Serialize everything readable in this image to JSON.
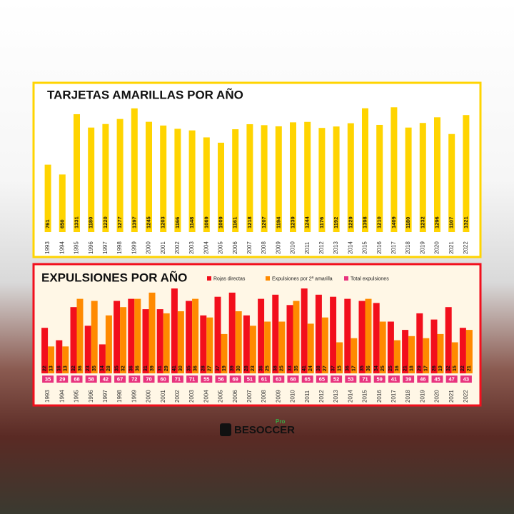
{
  "chart_data": [
    {
      "type": "bar",
      "title": "TARJETAS AMARILLAS POR AÑO",
      "categories": [
        "1993",
        "1994",
        "1995",
        "1996",
        "1997",
        "1998",
        "1999",
        "2000",
        "2001",
        "2002",
        "2003",
        "2004",
        "2005",
        "2006",
        "2007",
        "2008",
        "2009",
        "2010",
        "2011",
        "2012",
        "2013",
        "2014",
        "2015",
        "2016",
        "2017",
        "2018",
        "2019",
        "2020",
        "2021",
        "2022"
      ],
      "values": [
        761,
        650,
        1331,
        1180,
        1220,
        1277,
        1397,
        1245,
        1203,
        1166,
        1148,
        1069,
        1009,
        1161,
        1218,
        1207,
        1194,
        1239,
        1244,
        1176,
        1192,
        1229,
        1398,
        1210,
        1409,
        1180,
        1232,
        1296,
        1107,
        1321
      ],
      "color": "#ffd400"
    },
    {
      "type": "grouped-bar",
      "title": "EXPULSIONES POR AÑO",
      "categories": [
        "1993",
        "1994",
        "1995",
        "1996",
        "1997",
        "1998",
        "1999",
        "2000",
        "2001",
        "2002",
        "2003",
        "2004",
        "2005",
        "2006",
        "2007",
        "2008",
        "2009",
        "2010",
        "2011",
        "2012",
        "2013",
        "2014",
        "2015",
        "2016",
        "2017",
        "2018",
        "2019",
        "2020",
        "2021",
        "2022"
      ],
      "series": [
        {
          "name": "Rojas directas",
          "color": "#f20f1c",
          "values": [
            22,
            16,
            32,
            23,
            14,
            35,
            36,
            31,
            31,
            41,
            35,
            28,
            37,
            39,
            28,
            36,
            38,
            33,
            41,
            38,
            37,
            36,
            35,
            34,
            25,
            21,
            29,
            26,
            32,
            22
          ]
        },
        {
          "name": "Expulsiones por 2ª amarilla",
          "color": "#ff8a00",
          "values": [
            13,
            13,
            36,
            35,
            28,
            32,
            36,
            39,
            29,
            30,
            36,
            27,
            19,
            30,
            23,
            25,
            25,
            35,
            24,
            27,
            15,
            17,
            36,
            25,
            16,
            18,
            17,
            19,
            15,
            21
          ]
        },
        {
          "name": "Total expulsiones",
          "color": "#e8337e",
          "values": [
            35,
            29,
            68,
            58,
            42,
            67,
            72,
            70,
            60,
            71,
            71,
            55,
            56,
            69,
            51,
            61,
            63,
            68,
            65,
            65,
            52,
            53,
            71,
            59,
            41,
            39,
            46,
            45,
            47,
            43
          ]
        }
      ]
    }
  ],
  "logo": {
    "name": "BESOCCER",
    "badge": "Pro"
  }
}
